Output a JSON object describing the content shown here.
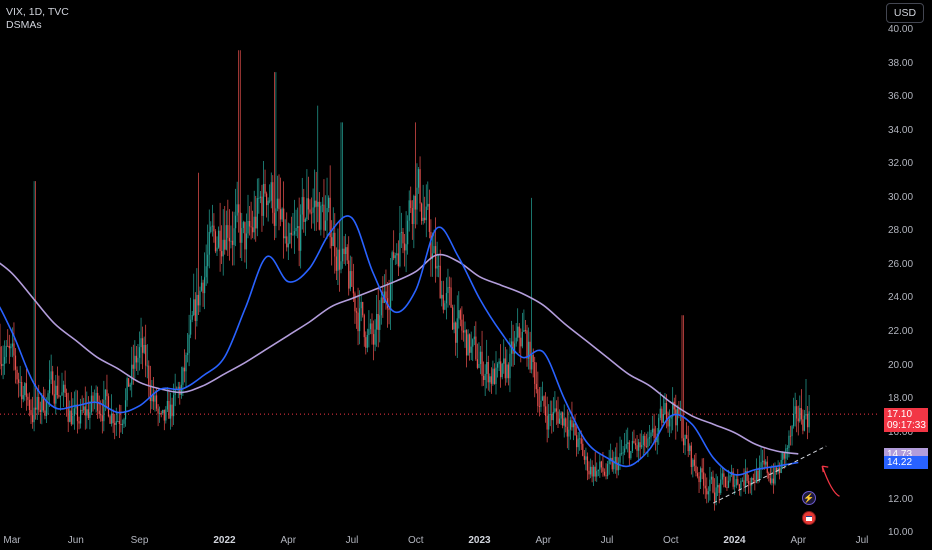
{
  "header": {
    "symbol_line": "VIX, 1D, TVC",
    "indicator_line": "DSMAs",
    "currency_button": "USD"
  },
  "price_tags": {
    "last_price": "17.10",
    "countdown": "09:17:33",
    "sma_long": "14.73",
    "sma_short": "14.22"
  },
  "colors": {
    "background": "#000000",
    "up": "#26a69a",
    "down": "#ef5350",
    "sma_short": "#2962ff",
    "sma_long": "#b39ddb",
    "last_price_line": "#f23645",
    "annotation_arrow": "#f23645",
    "trendline": "#d1d4dc"
  },
  "chart_data": {
    "type": "line",
    "subtype": "candlestick",
    "y_axis": {
      "ticks": [
        10,
        12,
        14,
        16,
        18,
        20,
        22,
        24,
        26,
        28,
        30,
        32,
        34,
        36,
        38,
        40
      ],
      "tick_labels": [
        "10.00",
        "12.00",
        "14.00",
        "16.00",
        "18.00",
        "20.00",
        "22.00",
        "24.00",
        "26.00",
        "28.00",
        "30.00",
        "32.00",
        "34.00",
        "36.00",
        "38.00",
        "40.00"
      ],
      "range": [
        9.0,
        41.8
      ],
      "position": "right"
    },
    "x_axis": {
      "tick_labels": [
        "Mar",
        "Jun",
        "Sep",
        "2022",
        "Apr",
        "Jul",
        "Oct",
        "2023",
        "Apr",
        "Jul",
        "Oct",
        "2024",
        "Apr",
        "Jul"
      ],
      "tick_dates": [
        "2021-03",
        "2021-06",
        "2021-09",
        "2022-01",
        "2022-04",
        "2022-07",
        "2022-10",
        "2023-01",
        "2023-04",
        "2023-07",
        "2023-10",
        "2024-01",
        "2024-04",
        "2024-07"
      ],
      "bold_labels": [
        "2022",
        "2023",
        "2024"
      ]
    },
    "last_price": 17.1,
    "price_anchors": [
      [
        "2021-01",
        26
      ],
      [
        "2021-02",
        22
      ],
      [
        "2021-03",
        20
      ],
      [
        "2021-04",
        17
      ],
      [
        "2021-05",
        19
      ],
      [
        "2021-06",
        16.5
      ],
      [
        "2021-07",
        18
      ],
      [
        "2021-08",
        17
      ],
      [
        "2021-09",
        21
      ],
      [
        "2021-10",
        16
      ],
      [
        "2021-11",
        19
      ],
      [
        "2021-12",
        26
      ],
      [
        "2022-01",
        29
      ],
      [
        "2022-02",
        27
      ],
      [
        "2022-03",
        31
      ],
      [
        "2022-04",
        26
      ],
      [
        "2022-05",
        30
      ],
      [
        "2022-06",
        28
      ],
      [
        "2022-07",
        24
      ],
      [
        "2022-08",
        21
      ],
      [
        "2022-09",
        27
      ],
      [
        "2022-10",
        31
      ],
      [
        "2022-11",
        25
      ],
      [
        "2022-12",
        22
      ],
      [
        "2023-01",
        20
      ],
      [
        "2023-02",
        19
      ],
      [
        "2023-03",
        22
      ],
      [
        "2023-04",
        17
      ],
      [
        "2023-05",
        17
      ],
      [
        "2023-06",
        14
      ],
      [
        "2023-07",
        13.5
      ],
      [
        "2023-08",
        15
      ],
      [
        "2023-09",
        15
      ],
      [
        "2023-10",
        18
      ],
      [
        "2023-11",
        14
      ],
      [
        "2023-12",
        12.5
      ],
      [
        "2024-01",
        13.2
      ],
      [
        "2024-02",
        13.6
      ],
      [
        "2024-03",
        13.5
      ],
      [
        "2024-04",
        17.1
      ]
    ],
    "sma_short": {
      "name": "",
      "current": 14.22,
      "points": [
        [
          "2021-01",
          24.0
        ],
        [
          "2021-02",
          24.2
        ],
        [
          "2021-03",
          22.0
        ],
        [
          "2021-04",
          19.0
        ],
        [
          "2021-05",
          17.5
        ],
        [
          "2021-06",
          17.6
        ],
        [
          "2021-07",
          17.8
        ],
        [
          "2021-08",
          17.2
        ],
        [
          "2021-09",
          17.6
        ],
        [
          "2021-10",
          18.6
        ],
        [
          "2021-11",
          18.6
        ],
        [
          "2021-12",
          19.4
        ],
        [
          "2022-01",
          20.5
        ],
        [
          "2022-02",
          23.5
        ],
        [
          "2022-03",
          26.5
        ],
        [
          "2022-04",
          25.0
        ],
        [
          "2022-05",
          25.8
        ],
        [
          "2022-06",
          28.0
        ],
        [
          "2022-07",
          28.8
        ],
        [
          "2022-08",
          25.5
        ],
        [
          "2022-09",
          23.2
        ],
        [
          "2022-10",
          24.5
        ],
        [
          "2022-11",
          28.2
        ],
        [
          "2022-12",
          26.5
        ],
        [
          "2023-01",
          24.0
        ],
        [
          "2023-02",
          22.0
        ],
        [
          "2023-03",
          20.5
        ],
        [
          "2023-04",
          20.8
        ],
        [
          "2023-05",
          18.0
        ],
        [
          "2023-06",
          15.5
        ],
        [
          "2023-07",
          14.5
        ],
        [
          "2023-08",
          14.0
        ],
        [
          "2023-09",
          15.0
        ],
        [
          "2023-10",
          17.0
        ],
        [
          "2023-11",
          16.5
        ],
        [
          "2023-12",
          14.5
        ],
        [
          "2024-01",
          13.5
        ],
        [
          "2024-02",
          13.8
        ],
        [
          "2024-03",
          14.0
        ],
        [
          "2024-04",
          14.22
        ]
      ]
    },
    "sma_long": {
      "name": "",
      "current": 14.73,
      "points": [
        [
          "2021-01",
          27.5
        ],
        [
          "2021-02",
          26.5
        ],
        [
          "2021-03",
          25.5
        ],
        [
          "2021-04",
          24.0
        ],
        [
          "2021-05",
          22.5
        ],
        [
          "2021-06",
          21.5
        ],
        [
          "2021-07",
          20.5
        ],
        [
          "2021-08",
          19.8
        ],
        [
          "2021-09",
          19.0
        ],
        [
          "2021-10",
          18.6
        ],
        [
          "2021-11",
          18.4
        ],
        [
          "2021-12",
          18.8
        ],
        [
          "2022-01",
          19.5
        ],
        [
          "2022-02",
          20.2
        ],
        [
          "2022-03",
          21.0
        ],
        [
          "2022-04",
          21.8
        ],
        [
          "2022-05",
          22.6
        ],
        [
          "2022-06",
          23.5
        ],
        [
          "2022-07",
          24.0
        ],
        [
          "2022-08",
          24.5
        ],
        [
          "2022-09",
          25.0
        ],
        [
          "2022-10",
          25.6
        ],
        [
          "2022-11",
          26.6
        ],
        [
          "2022-12",
          26.2
        ],
        [
          "2023-01",
          25.3
        ],
        [
          "2023-02",
          24.8
        ],
        [
          "2023-03",
          24.3
        ],
        [
          "2023-04",
          23.6
        ],
        [
          "2023-05",
          22.5
        ],
        [
          "2023-06",
          21.5
        ],
        [
          "2023-07",
          20.5
        ],
        [
          "2023-08",
          19.5
        ],
        [
          "2023-09",
          18.8
        ],
        [
          "2023-10",
          17.8
        ],
        [
          "2023-11",
          17.0
        ],
        [
          "2023-12",
          16.5
        ],
        [
          "2024-01",
          16.0
        ],
        [
          "2024-02",
          15.3
        ],
        [
          "2024-03",
          14.9
        ],
        [
          "2024-04",
          14.73
        ]
      ]
    },
    "trendline": {
      "style": "dashed",
      "from": [
        "2023-12",
        11.8
      ],
      "to": [
        "2024-04",
        15.2
      ]
    },
    "annotation_arrow": {
      "from": [
        "2024-05",
        12.2
      ],
      "to": [
        "2024-04",
        14.0
      ]
    },
    "grid": false,
    "legend": "top-left"
  }
}
